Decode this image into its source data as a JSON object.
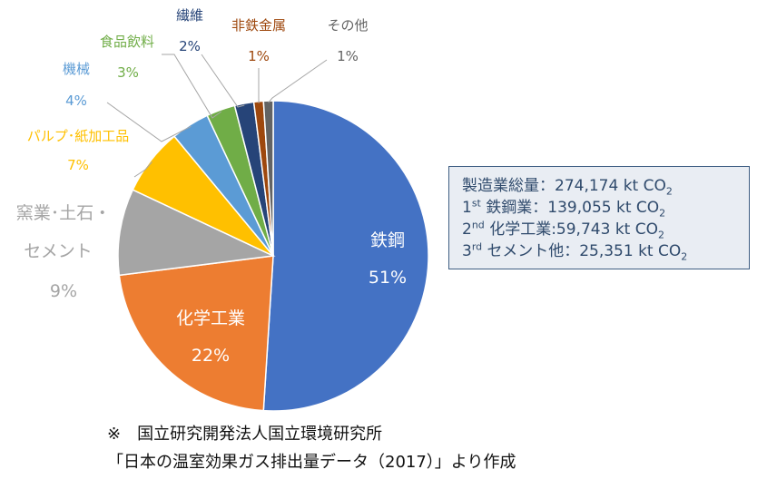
{
  "chart_data": {
    "type": "pie",
    "title": "",
    "categories": [
      "鉄鋼",
      "化学工業",
      "窯業･土石・セメント",
      "パルプ･紙加工品",
      "機械",
      "食品飲料",
      "繊維",
      "非鉄金属",
      "その他"
    ],
    "values": [
      51,
      22,
      9,
      7,
      4,
      3,
      2,
      1,
      1
    ],
    "value_labels": [
      "51%",
      "22%",
      "9%",
      "7%",
      "4%",
      "3%",
      "2%",
      "1%",
      "1%"
    ],
    "colors": [
      "#4472c4",
      "#ed7d31",
      "#a5a5a5",
      "#ffc000",
      "#5b9bd5",
      "#70ad47",
      "#264478",
      "#9e480e",
      "#636363"
    ],
    "start_angle_deg": 0,
    "direction": "clockwise",
    "legend": "none"
  },
  "labels": {
    "steel": {
      "name": "鉄鋼",
      "pct": "51%"
    },
    "chemical": {
      "name": "化学工業",
      "pct": "22%"
    },
    "ceramics": {
      "name1": "窯業･土石・",
      "name2": "セメント",
      "pct": "9%"
    },
    "pulp": {
      "name": "パルプ･紙加工品",
      "pct": "7%"
    },
    "machinery": {
      "name": "機械",
      "pct": "4%"
    },
    "food": {
      "name": "食品飲料",
      "pct": "3%"
    },
    "textile": {
      "name": "繊維",
      "pct": "2%"
    },
    "nonferrous": {
      "name": "非鉄金属",
      "pct": "1%"
    },
    "other": {
      "name": "その他",
      "pct": "1%"
    }
  },
  "label_colors": {
    "inside": "#ffffff",
    "ceramics": "#a5a5a5",
    "pulp": "#ffc000",
    "machinery": "#5b9bd5",
    "food": "#70ad47",
    "textile": "#264478",
    "nonferrous": "#9e480e",
    "other": "#636363"
  },
  "infobox": {
    "total_label": "製造業総量：274,174 kt CO",
    "total_sub": "2",
    "r1_rank": "1",
    "r1_sup": "st",
    "r1_text": " 鉄鋼業：139,055 kt CO",
    "r1_sub": "2",
    "r2_rank": "2",
    "r2_sup": "nd",
    "r2_text": " 化学工業:59,743 kt CO",
    "r2_sub": "2",
    "r3_rank": "3",
    "r3_sup": "rd",
    "r3_text": " セメント他：25,351 kt CO",
    "r3_sub": "2"
  },
  "source": {
    "line1": "※　国立研究開発法人国立環境研究所",
    "line2": "「日本の温室効果ガス排出量データ（2017）」より作成"
  }
}
